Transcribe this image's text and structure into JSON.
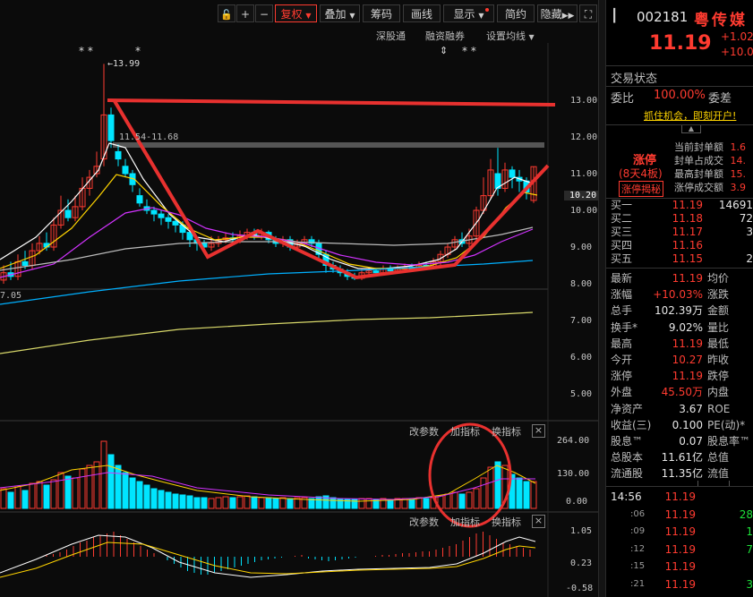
{
  "toolbar": {
    "lock": "🔓",
    "plus": "+",
    "minus": "−",
    "fuquan": "复权",
    "diejia": "叠加",
    "choumа": "筹码",
    "huaxian": "画线",
    "xianshi": "显示",
    "jianyue": "简约",
    "yincang": "隐藏",
    "expand": "⛶"
  },
  "chart_header": {
    "shengu": "深股通",
    "rongzi": "融资融券",
    "settings": "设置均线"
  },
  "annotations": {
    "high_label": "←13.99",
    "level_label": "11.54-11.68",
    "ma_label": "7.05",
    "stars_left": "* *",
    "star_mid": "*",
    "mark_a": "⇕",
    "stars_right": "*  *"
  },
  "price_axis": [
    "13.00",
    "12.00",
    "11.00",
    "10.20",
    "10.00",
    "9.00",
    "8.00",
    "7.00",
    "6.00",
    "5.00"
  ],
  "volume_panel": {
    "change_params": "改参数",
    "add_indicator": "加指标",
    "swap_indicator": "换指标",
    "close": "×",
    "axis": [
      "264.00",
      "130.00",
      "0.00"
    ]
  },
  "macd_panel": {
    "change_params": "改参数",
    "add_indicator": "加指标",
    "swap_indicator": "换指标",
    "close": "×",
    "axis": [
      "1.05",
      "0.23",
      "-0.58"
    ]
  },
  "stock": {
    "code": "002181",
    "name": "粤传媒",
    "price": "11.19",
    "change": "+1.02",
    "change_pct": "+10.0",
    "trade_status_label": "交易状态",
    "weibi_label": "委比",
    "weibi_value": "100.00%",
    "weicha_label": "委差",
    "promo": "抓住机会，即刻开户!",
    "limit_up_label": "涨停",
    "limit_days": "(8天4板)",
    "limit_reveal": "涨停揭秘",
    "seal_rows": [
      {
        "label": "当前封单额",
        "value": "1.6"
      },
      {
        "label": "封单占成交",
        "value": "14."
      },
      {
        "label": "最高封单额",
        "value": "15."
      },
      {
        "label": "涨停成交额",
        "value": "3.9"
      }
    ],
    "bids": [
      {
        "label": "买一",
        "price": "11.19",
        "vol": "14691"
      },
      {
        "label": "买二",
        "price": "11.18",
        "vol": "72"
      },
      {
        "label": "买三",
        "price": "11.17",
        "vol": "3"
      },
      {
        "label": "买四",
        "price": "11.16",
        "vol": ""
      },
      {
        "label": "买五",
        "price": "11.15",
        "vol": "2"
      }
    ],
    "stats": [
      {
        "l1": "最新",
        "v1": "11.19",
        "l2": "均价",
        "c1": "red"
      },
      {
        "l1": "涨幅",
        "v1": "+10.03%",
        "l2": "涨跌",
        "c1": "red"
      },
      {
        "l1": "总手",
        "v1": "102.39万",
        "l2": "金额",
        "c1": "white"
      },
      {
        "l1": "换手*",
        "v1": "9.02%",
        "l2": "量比",
        "c1": "white"
      },
      {
        "l1": "最高",
        "v1": "11.19",
        "l2": "最低",
        "c1": "red"
      },
      {
        "l1": "今开",
        "v1": "10.27",
        "l2": "昨收",
        "c1": "red"
      },
      {
        "l1": "涨停",
        "v1": "11.19",
        "l2": "跌停",
        "c1": "red"
      },
      {
        "l1": "外盘",
        "v1": "45.50万",
        "l2": "内盘",
        "c1": "red"
      },
      {
        "l1": "净资产",
        "v1": "3.67",
        "l2": "ROE",
        "c1": "white"
      },
      {
        "l1": "收益(三)",
        "v1": "0.100",
        "l2": "PE(动)*",
        "c1": "white"
      },
      {
        "l1": "股息™",
        "v1": "0.07",
        "l2": "股息率™",
        "c1": "white"
      },
      {
        "l1": "总股本",
        "v1": "11.61亿",
        "l2": "总值",
        "c1": "white"
      },
      {
        "l1": "流通股",
        "v1": "11.35亿",
        "l2": "流值",
        "c1": "white"
      }
    ],
    "ticks": [
      {
        "time": "14:56",
        "price": "11.19",
        "vol": ""
      },
      {
        "time": ":06",
        "price": "11.19",
        "vol": "28"
      },
      {
        "time": ":09",
        "price": "11.19",
        "vol": "1"
      },
      {
        "time": ":12",
        "price": "11.19",
        "vol": "7"
      },
      {
        "time": ":15",
        "price": "11.19",
        "vol": ""
      },
      {
        "time": ":21",
        "price": "11.19",
        "vol": "3"
      }
    ]
  },
  "colors": {
    "up": "#ff3b30",
    "down": "#00e5ff",
    "ma5": "#ffffff",
    "ma10": "#ffd400",
    "ma20": "#d233ff",
    "ma60": "#00b0ff",
    "annotation": "#e8312f"
  }
}
